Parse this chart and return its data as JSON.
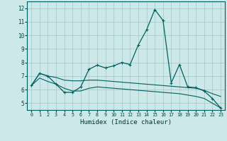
{
  "xlabel": "Humidex (Indice chaleur)",
  "background_color": "#cce8e8",
  "grid_color": "#aacccc",
  "line_color": "#006060",
  "xlim": [
    -0.5,
    23.5
  ],
  "ylim": [
    4.5,
    12.5
  ],
  "xticks": [
    0,
    1,
    2,
    3,
    4,
    5,
    6,
    7,
    8,
    9,
    10,
    11,
    12,
    13,
    14,
    15,
    16,
    17,
    18,
    19,
    20,
    21,
    22,
    23
  ],
  "yticks": [
    5,
    6,
    7,
    8,
    9,
    10,
    11,
    12
  ],
  "line1_x": [
    0,
    1,
    2,
    3,
    4,
    5,
    6,
    7,
    8,
    9,
    10,
    11,
    12,
    13,
    14,
    15,
    16,
    17,
    18,
    19,
    20,
    21,
    22,
    23
  ],
  "line1_y": [
    6.3,
    7.2,
    7.0,
    6.4,
    5.8,
    5.8,
    6.2,
    7.5,
    7.8,
    7.6,
    7.75,
    8.0,
    7.85,
    9.3,
    10.4,
    11.9,
    11.1,
    6.5,
    7.85,
    6.2,
    6.15,
    5.9,
    5.35,
    4.65
  ],
  "line2_x": [
    0,
    1,
    2,
    3,
    4,
    5,
    6,
    7,
    8,
    9,
    10,
    11,
    12,
    13,
    14,
    15,
    16,
    17,
    18,
    19,
    20,
    21,
    22,
    23
  ],
  "line2_y": [
    6.3,
    7.2,
    7.0,
    6.9,
    6.7,
    6.65,
    6.65,
    6.7,
    6.7,
    6.65,
    6.6,
    6.55,
    6.5,
    6.45,
    6.4,
    6.35,
    6.3,
    6.25,
    6.2,
    6.15,
    6.1,
    5.95,
    5.7,
    5.5
  ],
  "line3_x": [
    0,
    1,
    2,
    3,
    4,
    5,
    6,
    7,
    8,
    9,
    10,
    11,
    12,
    13,
    14,
    15,
    16,
    17,
    18,
    19,
    20,
    21,
    22,
    23
  ],
  "line3_y": [
    6.3,
    6.85,
    6.6,
    6.4,
    6.1,
    5.9,
    5.9,
    6.1,
    6.2,
    6.15,
    6.1,
    6.05,
    6.0,
    5.95,
    5.9,
    5.85,
    5.8,
    5.75,
    5.7,
    5.6,
    5.5,
    5.35,
    5.0,
    4.65
  ]
}
